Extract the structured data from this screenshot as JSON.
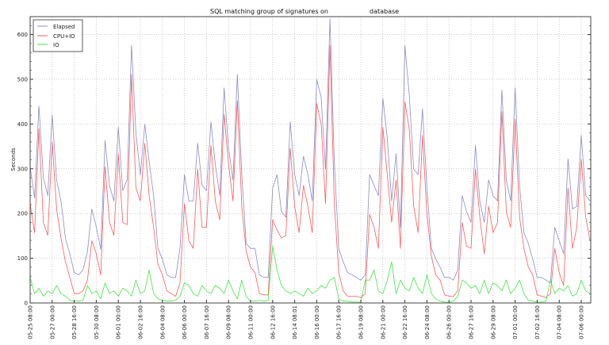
{
  "chart_data": {
    "type": "line",
    "title_left": "SQL matching group of signatures on",
    "title_right": "database",
    "xlabel": "",
    "ylabel": "Seconds",
    "ylim": [
      0,
      640
    ],
    "yticks": [
      "0",
      "100",
      "200",
      "300",
      "400",
      "500",
      "600"
    ],
    "xticks": [
      "05-25 08:00",
      "05-27 00:00",
      "05-28 16:00",
      "05-30 08:00",
      "06-01 00:00",
      "06-02 16:00",
      "06-04 08:00",
      "06-06 00:00",
      "06-07 16:00",
      "06-09 08:00",
      "06-11 00:00",
      "06-12 16:00",
      "06-14 08:01",
      "06-16 00:00",
      "06-17 16:00",
      "06-19 08:00",
      "06-21 00:00",
      "06-22 16:00",
      "06-24 08:00",
      "06-26 00:00",
      "06-27 16:00",
      "06-29 08:00",
      "07-01 00:00",
      "07-02 16:00",
      "07-04 08:00",
      "07-06 00:00"
    ],
    "grid": true,
    "legend_position": "top-left",
    "x": [
      "05-25 08:00",
      "05-25 16:00",
      "05-26 00:00",
      "05-26 08:00",
      "05-26 16:00",
      "05-27 00:00",
      "05-27 08:00",
      "05-27 16:00",
      "05-28 00:00",
      "05-28 08:00",
      "05-28 16:00",
      "05-29 00:00",
      "05-29 08:00",
      "05-29 16:00",
      "05-30 00:00",
      "05-30 08:00",
      "05-30 16:00",
      "05-31 00:00",
      "05-31 08:00",
      "05-31 16:00",
      "06-01 00:00",
      "06-01 08:00",
      "06-01 16:00",
      "06-02 00:00",
      "06-02 08:00",
      "06-02 16:00",
      "06-03 00:00",
      "06-03 08:00",
      "06-03 16:00",
      "06-04 00:00",
      "06-04 08:00",
      "06-04 16:00",
      "06-05 00:00",
      "06-05 08:00",
      "06-05 16:00",
      "06-06 00:00",
      "06-06 08:00",
      "06-06 16:00",
      "06-07 00:00",
      "06-07 08:00",
      "06-07 16:00",
      "06-08 00:00",
      "06-08 08:00",
      "06-08 16:00",
      "06-09 00:00",
      "06-09 08:00",
      "06-09 16:00",
      "06-10 00:00",
      "06-10 08:00",
      "06-10 16:00",
      "06-11 00:00",
      "06-11 08:00",
      "06-11 16:00",
      "06-12 00:00",
      "06-12 08:00",
      "06-12 16:00",
      "06-13 00:00",
      "06-13 08:00",
      "06-13 16:00",
      "06-14 00:00",
      "06-14 08:00",
      "06-14 16:00",
      "06-15 00:00",
      "06-15 08:00",
      "06-15 16:00",
      "06-16 00:00",
      "06-16 08:00",
      "06-16 16:00",
      "06-17 00:00",
      "06-17 08:00",
      "06-17 16:00",
      "06-18 00:00",
      "06-18 08:00",
      "06-18 16:00",
      "06-19 00:00",
      "06-19 08:00",
      "06-19 16:00",
      "06-20 00:00",
      "06-20 08:00",
      "06-20 16:00",
      "06-21 00:00",
      "06-21 08:00",
      "06-21 16:00",
      "06-22 00:00",
      "06-22 08:00",
      "06-22 16:00",
      "06-23 00:00",
      "06-23 08:00",
      "06-23 16:00",
      "06-24 00:00",
      "06-24 08:00",
      "06-24 16:00",
      "06-25 00:00",
      "06-25 08:00",
      "06-25 16:00",
      "06-26 00:00",
      "06-26 08:00",
      "06-26 16:00",
      "06-27 00:00",
      "06-27 08:00",
      "06-27 16:00",
      "06-28 00:00",
      "06-28 08:00",
      "06-28 16:00",
      "06-29 00:00",
      "06-29 08:00",
      "06-29 16:00",
      "06-30 00:00",
      "06-30 08:00",
      "06-30 16:00",
      "07-01 00:00",
      "07-01 08:00",
      "07-01 16:00",
      "07-02 00:00",
      "07-02 08:00",
      "07-02 16:00",
      "07-03 00:00",
      "07-03 08:00",
      "07-03 16:00",
      "07-04 00:00",
      "07-04 08:00",
      "07-04 16:00",
      "07-05 00:00",
      "07-05 08:00",
      "07-05 16:00",
      "07-06 00:00",
      "07-06 08:00",
      "07-06 16:00"
    ],
    "series": [
      {
        "name": "Elapsed",
        "color": "#8c8cc8",
        "values": [
          305,
          234,
          440,
          280,
          240,
          420,
          275,
          228,
          145,
          110,
          68,
          63,
          74,
          115,
          210,
          170,
          120,
          363,
          263,
          228,
          393,
          251,
          275,
          576,
          381,
          286,
          399,
          316,
          240,
          122,
          98,
          63,
          57,
          57,
          122,
          287,
          228,
          228,
          357,
          263,
          251,
          405,
          310,
          240,
          481,
          346,
          275,
          511,
          287,
          133,
          122,
          122,
          63,
          57,
          57,
          257,
          287,
          204,
          192,
          405,
          287,
          240,
          328,
          287,
          228,
          499,
          460,
          299,
          635,
          316,
          122,
          92,
          68,
          63,
          57,
          51,
          63,
          287,
          263,
          240,
          458,
          369,
          228,
          334,
          169,
          576,
          463,
          299,
          287,
          434,
          257,
          122,
          98,
          80,
          57,
          57,
          51,
          74,
          240,
          204,
          180,
          352,
          228,
          180,
          275,
          240,
          228,
          476,
          275,
          228,
          481,
          263,
          157,
          133,
          98,
          57,
          57,
          51,
          45,
          169,
          139,
          110,
          322,
          210,
          216,
          375,
          240,
          228
        ]
      },
      {
        "name": "CPU+IO",
        "color": "#ff5a5a",
        "values": [
          222,
          157,
          390,
          180,
          151,
          360,
          210,
          145,
          92,
          57,
          21,
          21,
          27,
          51,
          139,
          110,
          63,
          304,
          180,
          151,
          334,
          180,
          175,
          511,
          257,
          228,
          357,
          240,
          169,
          86,
          63,
          27,
          21,
          15,
          45,
          222,
          139,
          122,
          299,
          169,
          169,
          352,
          228,
          186,
          422,
          310,
          228,
          452,
          216,
          116,
          80,
          68,
          21,
          18,
          18,
          186,
          163,
          145,
          151,
          346,
          216,
          157,
          263,
          216,
          157,
          446,
          400,
          222,
          575,
          222,
          68,
          27,
          15,
          15,
          15,
          12,
          21,
          198,
          169,
          122,
          393,
          287,
          180,
          275,
          122,
          450,
          387,
          216,
          157,
          375,
          198,
          104,
          63,
          51,
          18,
          15,
          15,
          27,
          180,
          127,
          122,
          299,
          192,
          110,
          216,
          157,
          180,
          428,
          204,
          169,
          411,
          192,
          122,
          80,
          63,
          18,
          15,
          12,
          21,
          122,
          68,
          39,
          257,
          122,
          169,
          322,
          192,
          139
        ]
      },
      {
        "name": "IO",
        "color": "#44e644",
        "values": [
          57,
          21,
          33,
          15,
          27,
          21,
          39,
          21,
          15,
          6,
          4,
          4,
          6,
          39,
          21,
          27,
          9,
          45,
          21,
          27,
          15,
          33,
          27,
          15,
          51,
          21,
          27,
          74,
          21,
          9,
          6,
          4,
          4,
          6,
          15,
          45,
          39,
          21,
          15,
          39,
          27,
          21,
          39,
          33,
          21,
          51,
          27,
          9,
          51,
          15,
          4,
          4,
          6,
          4,
          6,
          127,
          74,
          39,
          27,
          21,
          27,
          21,
          15,
          33,
          21,
          27,
          39,
          33,
          51,
          57,
          9,
          4,
          4,
          2,
          2,
          2,
          51,
          51,
          74,
          27,
          21,
          51,
          92,
          21,
          51,
          33,
          27,
          57,
          33,
          21,
          63,
          21,
          9,
          4,
          2,
          2,
          4,
          15,
          51,
          45,
          33,
          39,
          21,
          51,
          21,
          45,
          39,
          27,
          51,
          21,
          33,
          51,
          21,
          6,
          4,
          2,
          2,
          4,
          51,
          21,
          33,
          27,
          39,
          15,
          21,
          51,
          27,
          21
        ]
      }
    ]
  }
}
